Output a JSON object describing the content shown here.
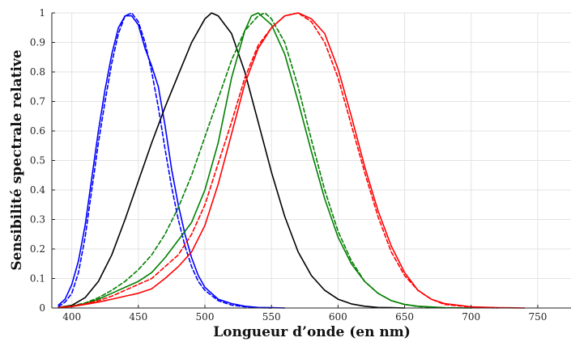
{
  "chart_data": {
    "type": "line",
    "title": "",
    "xlabel": "Longueur d’onde (en nm)",
    "ylabel": "Sensibilité spectrale relative",
    "xlim": [
      385,
      775
    ],
    "ylim": [
      0,
      1
    ],
    "xticks": [
      400,
      450,
      500,
      550,
      600,
      650,
      700,
      750
    ],
    "yticks": [
      0,
      0.1,
      0.2,
      0.3,
      0.4,
      0.5,
      0.6,
      0.7,
      0.8,
      0.9,
      1
    ],
    "ytick_labels": [
      "0",
      "0.1",
      "0.2",
      "0.3",
      "0.4",
      "0.5",
      "0.6",
      "0.7",
      "0.8",
      "0.9",
      "1"
    ],
    "grid": true,
    "legend": "none",
    "series": [
      {
        "color": "#0000ff",
        "style": "solid",
        "x": [
          390,
          395,
          400,
          405,
          410,
          415,
          420,
          425,
          430,
          435,
          440,
          445,
          450,
          455,
          460,
          465,
          470,
          475,
          480,
          485,
          490,
          495,
          500,
          510,
          520,
          530,
          540,
          550,
          560
        ],
        "y": [
          0.01,
          0.03,
          0.08,
          0.16,
          0.28,
          0.44,
          0.6,
          0.74,
          0.86,
          0.95,
          0.99,
          0.99,
          0.96,
          0.88,
          0.82,
          0.75,
          0.62,
          0.47,
          0.35,
          0.25,
          0.17,
          0.11,
          0.07,
          0.03,
          0.015,
          0.006,
          0.002,
          0.001,
          0
        ]
      },
      {
        "color": "#0000ff",
        "style": "dashed",
        "x": [
          390,
          395,
          400,
          405,
          410,
          415,
          420,
          425,
          430,
          435,
          440,
          445,
          450,
          455,
          460,
          465,
          470,
          475,
          480,
          485,
          490,
          495,
          500,
          510,
          520,
          530,
          540,
          550
        ],
        "y": [
          0.005,
          0.02,
          0.05,
          0.12,
          0.24,
          0.4,
          0.56,
          0.7,
          0.83,
          0.93,
          0.99,
          1.0,
          0.97,
          0.9,
          0.8,
          0.68,
          0.54,
          0.41,
          0.3,
          0.21,
          0.14,
          0.09,
          0.06,
          0.025,
          0.01,
          0.004,
          0.001,
          0
        ]
      },
      {
        "color": "#000000",
        "style": "solid",
        "x": [
          390,
          400,
          410,
          420,
          430,
          440,
          450,
          460,
          470,
          480,
          490,
          500,
          505,
          510,
          520,
          530,
          540,
          550,
          560,
          570,
          580,
          590,
          600,
          610,
          620,
          630,
          640,
          650
        ],
        "y": [
          0.002,
          0.009,
          0.035,
          0.09,
          0.18,
          0.3,
          0.43,
          0.56,
          0.68,
          0.79,
          0.9,
          0.98,
          1.0,
          0.99,
          0.93,
          0.8,
          0.63,
          0.46,
          0.31,
          0.19,
          0.11,
          0.06,
          0.03,
          0.014,
          0.006,
          0.002,
          0.001,
          0
        ]
      },
      {
        "color": "#008000",
        "style": "solid",
        "x": [
          390,
          400,
          410,
          420,
          430,
          440,
          450,
          460,
          470,
          480,
          490,
          500,
          510,
          520,
          530,
          535,
          540,
          545,
          550,
          560,
          570,
          580,
          590,
          600,
          610,
          620,
          630,
          640,
          650,
          660,
          680,
          700
        ],
        "y": [
          0.002,
          0.006,
          0.015,
          0.03,
          0.05,
          0.07,
          0.09,
          0.12,
          0.17,
          0.23,
          0.29,
          0.4,
          0.56,
          0.78,
          0.94,
          0.99,
          1.0,
          0.98,
          0.96,
          0.86,
          0.7,
          0.53,
          0.37,
          0.24,
          0.15,
          0.09,
          0.05,
          0.025,
          0.012,
          0.006,
          0.001,
          0
        ]
      },
      {
        "color": "#008000",
        "style": "dashed",
        "x": [
          390,
          400,
          410,
          420,
          430,
          440,
          450,
          460,
          470,
          480,
          490,
          500,
          510,
          520,
          530,
          540,
          545,
          550,
          560,
          570,
          580,
          590,
          600,
          610,
          620,
          630,
          640,
          650,
          660,
          680
        ],
        "y": [
          0.002,
          0.007,
          0.017,
          0.035,
          0.06,
          0.09,
          0.13,
          0.18,
          0.25,
          0.34,
          0.45,
          0.58,
          0.71,
          0.84,
          0.94,
          0.99,
          1.0,
          0.98,
          0.9,
          0.75,
          0.57,
          0.4,
          0.26,
          0.16,
          0.09,
          0.05,
          0.025,
          0.012,
          0.005,
          0
        ]
      },
      {
        "color": "#ff0000",
        "style": "solid",
        "x": [
          390,
          400,
          410,
          420,
          430,
          440,
          450,
          460,
          470,
          480,
          490,
          500,
          510,
          520,
          530,
          540,
          550,
          560,
          570,
          580,
          590,
          600,
          610,
          620,
          630,
          640,
          650,
          660,
          670,
          680,
          700,
          720,
          740
        ],
        "y": [
          0.001,
          0.005,
          0.012,
          0.02,
          0.03,
          0.04,
          0.05,
          0.065,
          0.1,
          0.14,
          0.19,
          0.28,
          0.42,
          0.59,
          0.76,
          0.88,
          0.95,
          0.99,
          1.0,
          0.98,
          0.93,
          0.81,
          0.65,
          0.48,
          0.33,
          0.21,
          0.12,
          0.06,
          0.03,
          0.015,
          0.004,
          0.001,
          0
        ]
      },
      {
        "color": "#ff0000",
        "style": "dashed",
        "x": [
          390,
          400,
          410,
          420,
          430,
          440,
          450,
          460,
          470,
          480,
          490,
          500,
          510,
          520,
          530,
          540,
          550,
          560,
          570,
          580,
          590,
          600,
          610,
          620,
          630,
          640,
          650,
          660,
          670,
          680,
          700,
          720
        ],
        "y": [
          0.002,
          0.006,
          0.014,
          0.025,
          0.04,
          0.06,
          0.08,
          0.1,
          0.14,
          0.18,
          0.25,
          0.35,
          0.49,
          0.63,
          0.78,
          0.89,
          0.95,
          0.99,
          1.0,
          0.97,
          0.9,
          0.78,
          0.62,
          0.46,
          0.31,
          0.19,
          0.11,
          0.06,
          0.03,
          0.012,
          0.003,
          0
        ]
      }
    ]
  }
}
